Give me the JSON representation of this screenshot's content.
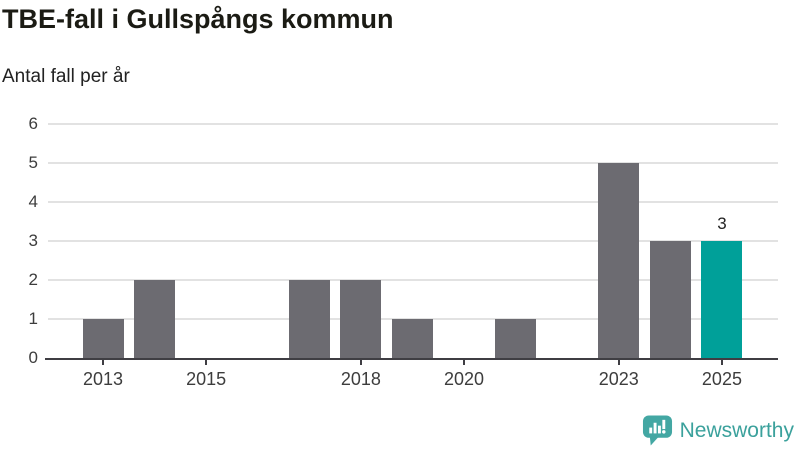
{
  "header": {
    "title": "TBE-fall i Gullspångs kommun",
    "subtitle": "Antal fall per år"
  },
  "chart_data": {
    "type": "bar",
    "title": "TBE-fall i Gullspångs kommun",
    "ylabel": "Antal fall per år",
    "xlabel": "",
    "categories": [
      2013,
      2014,
      2015,
      2016,
      2017,
      2018,
      2019,
      2020,
      2021,
      2022,
      2023,
      2024,
      2025
    ],
    "values": [
      1,
      2,
      0,
      0,
      2,
      2,
      1,
      0,
      1,
      0,
      5,
      3,
      3
    ],
    "highlight_index": 12,
    "highlight_label": "3",
    "ylim": [
      0,
      6
    ],
    "yticks": [
      0,
      1,
      2,
      3,
      4,
      5,
      6
    ],
    "xtick_labels": [
      2013,
      2015,
      2018,
      2020,
      2023,
      2025
    ],
    "grid": true,
    "legend": "none",
    "colors": {
      "bar": "#6c6b71",
      "highlight": "#00a099",
      "grid": "#e2e2e2",
      "axis": "#3f3e43",
      "tick_text": "#3d3d3d"
    }
  },
  "branding": {
    "name": "Newsworthy",
    "logo_icon": "bar-chart-speech-bubble-icon",
    "icon_color": "#43a7a3",
    "text_color": "#3ba19c"
  }
}
